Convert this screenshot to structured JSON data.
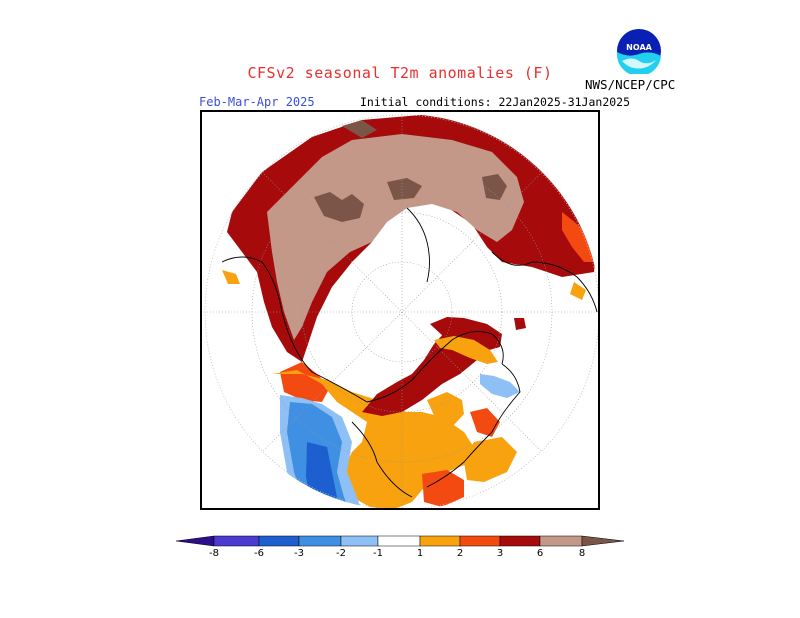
{
  "header": {
    "title": "CFSv2 seasonal T2m anomalies (F)",
    "season": "Feb-Mar-Apr 2025",
    "initial_conditions": "Initial conditions: 22Jan2025-31Jan2025",
    "agency": "NWS/NCEP/CPC",
    "logo_text": "NOAA"
  },
  "map": {
    "projection": "polar stereographic (north)",
    "units": "F"
  },
  "colorbar": {
    "ticks": [
      "-8",
      "-6",
      "-3",
      "-2",
      "-1",
      "1",
      "2",
      "3",
      "6",
      "8"
    ],
    "colors": {
      "lt_-8": "#2d0f8c",
      "-8_-6": "#4b3bd1",
      "-6_-3": "#1e5fd0",
      "-3_-2": "#3f8fe3",
      "-2_-1": "#8ec0f5",
      "-1_1": "#ffffff",
      "1_2": "#f7a20e",
      "2_3": "#f34a12",
      "3_6": "#a60a0a",
      "6_8": "#c49889",
      "gt_8": "#7a5548"
    }
  }
}
